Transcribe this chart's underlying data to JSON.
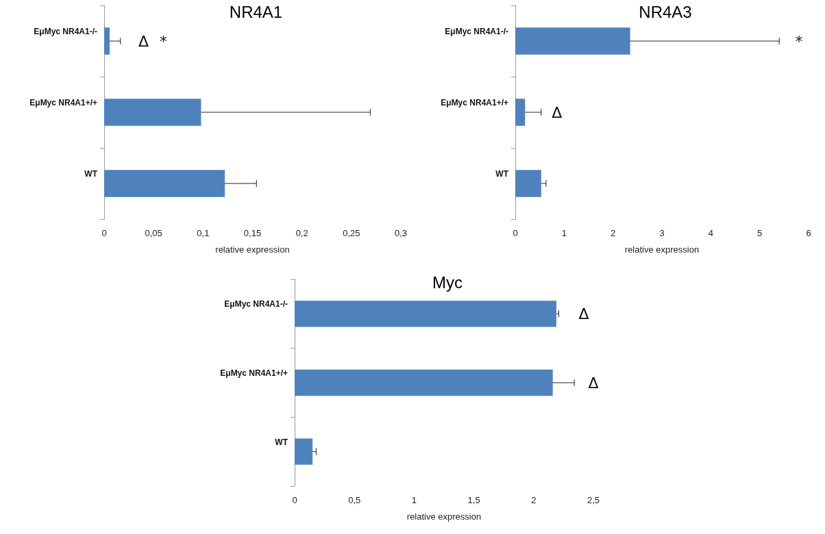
{
  "chart_data": [
    {
      "type": "bar",
      "orientation": "horizontal",
      "title": "NR4A1",
      "xlabel": "relative expression",
      "categories": [
        "EμMyc NR4A1-/-",
        "EμMyc NR4A1+/+",
        "WT"
      ],
      "values": [
        0.0055,
        0.098,
        0.122
      ],
      "errors": [
        [
          0.0055,
          0.0165
        ],
        [
          0.098,
          0.269
        ],
        [
          0.122,
          0.154
        ]
      ],
      "color": "#4f81bd",
      "xlim": [
        0,
        0.3
      ],
      "xticks": [
        0,
        {
          "value": 0.05,
          "label": "0,05"
        },
        {
          "value": 0.1,
          "label": "0,1"
        },
        {
          "value": 0.15,
          "label": "0,15"
        },
        {
          "value": 0.2,
          "label": "0,2"
        },
        {
          "value": 0.25,
          "label": "0,25"
        },
        {
          "value": 0.3,
          "label": "0,3"
        }
      ],
      "grid": false,
      "annotations": [
        "Δ",
        "*"
      ]
    },
    {
      "type": "bar",
      "orientation": "horizontal",
      "title": "NR4A3",
      "xlabel": "relative expression",
      "categories": [
        "EμMyc NR4A1-/-",
        "EμMyc NR4A1+/+",
        "WT"
      ],
      "values": [
        2.35,
        0.2,
        0.53
      ],
      "errors": [
        [
          2.35,
          5.4
        ],
        [
          0.2,
          0.53
        ],
        [
          0.53,
          0.63
        ]
      ],
      "color": "#4f81bd",
      "xlim": [
        0,
        6
      ],
      "xticks": [
        0,
        1,
        2,
        3,
        4,
        5,
        6
      ],
      "grid": false,
      "annotations": [
        "*",
        "Δ"
      ]
    },
    {
      "type": "bar",
      "orientation": "horizontal",
      "title": "Myc",
      "xlabel": "relative expression",
      "categories": [
        "EμMyc NR4A1-/-",
        "EμMyc NR4A1+/+",
        "WT"
      ],
      "values": [
        2.19,
        2.16,
        0.15
      ],
      "errors": [
        [
          2.19,
          2.21
        ],
        [
          2.16,
          2.34
        ],
        [
          0.15,
          0.18
        ]
      ],
      "color": "#4f81bd",
      "xlim": [
        0,
        2.5
      ],
      "xticks": [
        0,
        {
          "value": 0.5,
          "label": "0,5"
        },
        1,
        {
          "value": 1.5,
          "label": "1,5"
        },
        2,
        {
          "value": 2.5,
          "label": "2,5"
        }
      ],
      "grid": false,
      "annotations": [
        "Δ",
        "Δ"
      ]
    }
  ]
}
